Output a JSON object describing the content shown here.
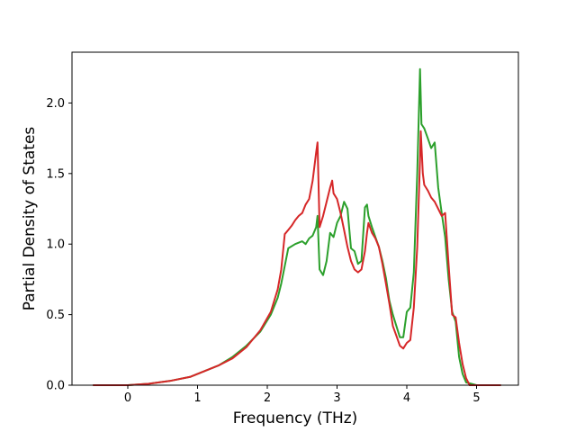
{
  "chart_data": {
    "type": "line",
    "title": "",
    "xlabel": "Frequency (THz)",
    "ylabel": "Partial Density of States",
    "xlim": [
      -0.8,
      5.6
    ],
    "ylim": [
      0.0,
      2.36
    ],
    "xticks": [
      0,
      1,
      2,
      3,
      4,
      5
    ],
    "xtick_labels": [
      "0",
      "1",
      "2",
      "3",
      "4",
      "5"
    ],
    "yticks": [
      0.0,
      0.5,
      1.0,
      1.5,
      2.0
    ],
    "ytick_labels": [
      "0.0",
      "0.5",
      "1.0",
      "1.5",
      "2.0"
    ],
    "grid": false,
    "legend": "none",
    "series": [
      {
        "color": "#2ca02c",
        "x": [
          -0.5,
          0.0,
          0.3,
          0.6,
          0.9,
          1.1,
          1.3,
          1.5,
          1.7,
          1.9,
          2.05,
          2.15,
          2.2,
          2.3,
          2.4,
          2.5,
          2.55,
          2.6,
          2.65,
          2.7,
          2.72,
          2.75,
          2.8,
          2.85,
          2.9,
          2.95,
          3.0,
          3.05,
          3.1,
          3.15,
          3.2,
          3.25,
          3.3,
          3.35,
          3.4,
          3.43,
          3.45,
          3.5,
          3.55,
          3.6,
          3.65,
          3.7,
          3.75,
          3.8,
          3.85,
          3.9,
          3.95,
          4.0,
          4.05,
          4.1,
          4.15,
          4.19,
          4.21,
          4.25,
          4.3,
          4.35,
          4.4,
          4.45,
          4.5,
          4.55,
          4.6,
          4.65,
          4.7,
          4.75,
          4.8,
          4.85,
          5.0,
          5.35
        ],
        "y": [
          0.0,
          0.0,
          0.01,
          0.03,
          0.06,
          0.1,
          0.14,
          0.2,
          0.28,
          0.38,
          0.5,
          0.62,
          0.72,
          0.97,
          1.0,
          1.02,
          1.0,
          1.04,
          1.06,
          1.12,
          1.2,
          0.82,
          0.78,
          0.88,
          1.08,
          1.05,
          1.15,
          1.2,
          1.3,
          1.25,
          0.97,
          0.95,
          0.86,
          0.88,
          1.26,
          1.28,
          1.2,
          1.12,
          1.05,
          0.98,
          0.88,
          0.76,
          0.6,
          0.5,
          0.42,
          0.34,
          0.34,
          0.52,
          0.55,
          0.8,
          1.5,
          2.24,
          1.85,
          1.82,
          1.75,
          1.68,
          1.72,
          1.4,
          1.22,
          1.05,
          0.75,
          0.52,
          0.45,
          0.2,
          0.08,
          0.02,
          0.0,
          0.0
        ]
      },
      {
        "color": "#d62728",
        "x": [
          -0.5,
          0.0,
          0.3,
          0.6,
          0.9,
          1.1,
          1.3,
          1.5,
          1.7,
          1.9,
          2.05,
          2.15,
          2.2,
          2.25,
          2.3,
          2.35,
          2.4,
          2.45,
          2.5,
          2.55,
          2.6,
          2.65,
          2.7,
          2.72,
          2.75,
          2.8,
          2.85,
          2.9,
          2.93,
          2.95,
          3.0,
          3.05,
          3.1,
          3.15,
          3.2,
          3.25,
          3.3,
          3.35,
          3.4,
          3.43,
          3.45,
          3.5,
          3.55,
          3.6,
          3.65,
          3.7,
          3.75,
          3.8,
          3.85,
          3.9,
          3.95,
          4.0,
          4.05,
          4.1,
          4.15,
          4.19,
          4.2,
          4.23,
          4.25,
          4.3,
          4.35,
          4.4,
          4.45,
          4.5,
          4.55,
          4.6,
          4.65,
          4.7,
          4.75,
          4.8,
          4.85,
          4.9,
          5.35
        ],
        "y": [
          0.0,
          0.0,
          0.01,
          0.03,
          0.06,
          0.1,
          0.14,
          0.19,
          0.27,
          0.39,
          0.52,
          0.68,
          0.82,
          1.07,
          1.1,
          1.13,
          1.17,
          1.2,
          1.22,
          1.28,
          1.32,
          1.45,
          1.65,
          1.72,
          1.12,
          1.2,
          1.3,
          1.4,
          1.45,
          1.36,
          1.32,
          1.22,
          1.1,
          0.98,
          0.88,
          0.82,
          0.8,
          0.82,
          0.95,
          1.08,
          1.15,
          1.08,
          1.04,
          0.98,
          0.86,
          0.72,
          0.58,
          0.42,
          0.35,
          0.28,
          0.26,
          0.3,
          0.32,
          0.55,
          0.98,
          1.6,
          1.8,
          1.5,
          1.42,
          1.38,
          1.33,
          1.3,
          1.25,
          1.2,
          1.22,
          0.85,
          0.5,
          0.48,
          0.3,
          0.15,
          0.05,
          0.0,
          0.0
        ]
      }
    ]
  }
}
